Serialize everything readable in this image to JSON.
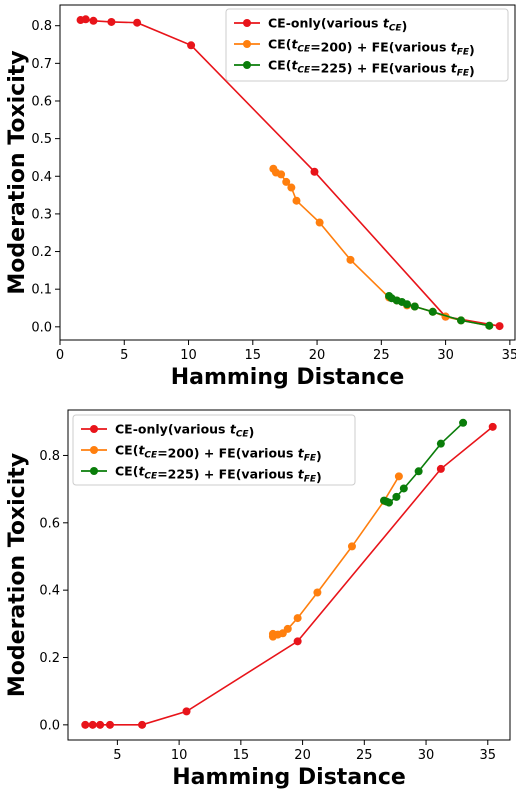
{
  "chart_data": [
    {
      "type": "line",
      "xlabel": "Hamming Distance",
      "ylabel": "Moderation Toxicity",
      "xlim": [
        0,
        35.4
      ],
      "ylim": [
        -0.035,
        0.855
      ],
      "xticks": [
        0,
        5,
        10,
        15,
        20,
        25,
        30,
        35
      ],
      "yticks": [
        0.0,
        0.1,
        0.2,
        0.3,
        0.4,
        0.5,
        0.6,
        0.7,
        0.8
      ],
      "ytick_labels": [
        "0.0",
        "0.1",
        "0.2",
        "0.3",
        "0.4",
        "0.5",
        "0.6",
        "0.7",
        "0.8"
      ],
      "grid": false,
      "legend": "top-right",
      "series": [
        {
          "name": "CE-only(various t_CE)",
          "legend_parts": [
            "CE-only(various ",
            "t",
            "CE",
            ")"
          ],
          "color": "#e8141a",
          "points": [
            [
              1.6,
              0.815
            ],
            [
              2.0,
              0.817
            ],
            [
              2.6,
              0.813
            ],
            [
              4.0,
              0.81
            ],
            [
              6.0,
              0.808
            ],
            [
              10.2,
              0.748
            ],
            [
              19.8,
              0.412
            ],
            [
              30.0,
              0.027
            ],
            [
              34.2,
              0.002
            ]
          ]
        },
        {
          "name": "CE(t_CE=200) + FE(various t_FE)",
          "legend_parts": [
            "CE(",
            "t",
            "CE",
            "=200) + FE(various ",
            "t",
            "FE",
            ")"
          ],
          "color": "#ff7f0e",
          "points": [
            [
              16.6,
              0.42
            ],
            [
              16.8,
              0.41
            ],
            [
              17.2,
              0.405
            ],
            [
              17.6,
              0.385
            ],
            [
              18.0,
              0.37
            ],
            [
              18.4,
              0.335
            ],
            [
              20.2,
              0.277
            ],
            [
              22.6,
              0.178
            ],
            [
              25.6,
              0.078
            ],
            [
              26.2,
              0.07
            ],
            [
              27.0,
              0.057
            ],
            [
              27.6,
              0.054
            ],
            [
              29.0,
              0.04
            ],
            [
              30.0,
              0.027
            ],
            [
              31.2,
              0.017
            ],
            [
              33.4,
              0.003
            ]
          ]
        },
        {
          "name": "CE(t_CE=225) + FE(various t_FE)",
          "legend_parts": [
            "CE(",
            "t",
            "CE",
            "=225) + FE(various ",
            "t",
            "FE",
            ")"
          ],
          "color": "#0a7d0a",
          "points": [
            [
              25.6,
              0.082
            ],
            [
              25.8,
              0.076
            ],
            [
              26.2,
              0.07
            ],
            [
              26.6,
              0.066
            ],
            [
              27.0,
              0.06
            ],
            [
              27.6,
              0.054
            ],
            [
              29.0,
              0.04
            ],
            [
              31.2,
              0.017
            ],
            [
              33.4,
              0.003
            ]
          ]
        }
      ]
    },
    {
      "type": "line",
      "xlabel": "Hamming Distance",
      "ylabel": "Moderation Toxicity",
      "xlim": [
        1.0,
        36.8
      ],
      "ylim": [
        -0.045,
        0.935
      ],
      "xticks": [
        5,
        10,
        15,
        20,
        25,
        30,
        35
      ],
      "yticks": [
        0.0,
        0.2,
        0.4,
        0.6,
        0.8
      ],
      "ytick_labels": [
        "0.0",
        "0.2",
        "0.4",
        "0.6",
        "0.8"
      ],
      "grid": false,
      "legend": "top-left",
      "series": [
        {
          "name": "CE-only(various t_CE)",
          "legend_parts": [
            "CE-only(various ",
            "t",
            "CE",
            ")"
          ],
          "color": "#e8141a",
          "points": [
            [
              2.4,
              0.0
            ],
            [
              3.0,
              0.0
            ],
            [
              3.6,
              0.0
            ],
            [
              4.4,
              0.0
            ],
            [
              7.0,
              0.0
            ],
            [
              10.6,
              0.04
            ],
            [
              19.6,
              0.248
            ],
            [
              31.2,
              0.76
            ],
            [
              35.4,
              0.885
            ]
          ]
        },
        {
          "name": "CE(t_CE=200) + FE(various t_FE)",
          "legend_parts": [
            "CE(",
            "t",
            "CE",
            "=200) + FE(various ",
            "t",
            "FE",
            ")"
          ],
          "color": "#ff7f0e",
          "points": [
            [
              17.6,
              0.262
            ],
            [
              17.6,
              0.27
            ],
            [
              18.0,
              0.268
            ],
            [
              18.4,
              0.272
            ],
            [
              18.8,
              0.285
            ],
            [
              19.6,
              0.317
            ],
            [
              21.2,
              0.393
            ],
            [
              24.0,
              0.53
            ],
            [
              26.6,
              0.665
            ],
            [
              27.8,
              0.738
            ]
          ]
        },
        {
          "name": "CE(t_CE=225) + FE(various t_FE)",
          "legend_parts": [
            "CE(",
            "t",
            "CE",
            "=225) + FE(various ",
            "t",
            "FE",
            ")"
          ],
          "color": "#0a7d0a",
          "points": [
            [
              26.6,
              0.666
            ],
            [
              26.8,
              0.663
            ],
            [
              27.0,
              0.66
            ],
            [
              27.6,
              0.677
            ],
            [
              28.2,
              0.702
            ],
            [
              29.4,
              0.753
            ],
            [
              31.2,
              0.835
            ],
            [
              33.0,
              0.897
            ]
          ]
        }
      ]
    }
  ]
}
